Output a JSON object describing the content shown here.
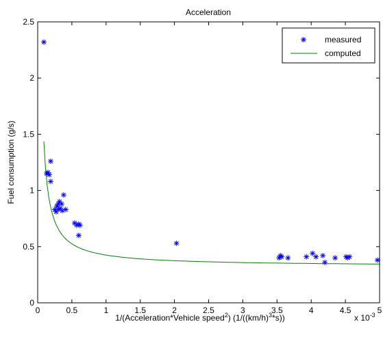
{
  "chart_data": {
    "type": "scatter",
    "title": "Acceleration",
    "xlabel": {
      "prefix": "1/(Acceleration*Vehicle speed",
      "sup1": "2",
      "middle": ") (1/((km/h)",
      "sup2": "3",
      "suffix": "*s))"
    },
    "ylabel": "Fuel consumption (g/s)",
    "x_multiplier": {
      "base": "x 10",
      "exponent": "-3"
    },
    "xlim": [
      0,
      5
    ],
    "ylim": [
      0,
      2.5
    ],
    "x_ticks": [
      0,
      0.5,
      1,
      1.5,
      2,
      2.5,
      3,
      3.5,
      4,
      4.5,
      5
    ],
    "x_tick_labels": [
      "0",
      "0.5",
      "1",
      "1.5",
      "2",
      "2.5",
      "3",
      "3.5",
      "4",
      "4.5",
      "5"
    ],
    "y_ticks": [
      0,
      0.5,
      1,
      1.5,
      2,
      2.5
    ],
    "y_tick_labels": [
      "0",
      "0.5",
      "1",
      "1.5",
      "2",
      "2.5"
    ],
    "grid": false,
    "legend_position": "top-right",
    "series": [
      {
        "name": "measured",
        "kind": "markers",
        "marker": "asterisk",
        "color": "#0000ff",
        "points": [
          [
            0.09,
            2.32
          ],
          [
            0.13,
            1.15
          ],
          [
            0.15,
            1.16
          ],
          [
            0.17,
            1.14
          ],
          [
            0.19,
            1.26
          ],
          [
            0.19,
            1.08
          ],
          [
            0.25,
            0.83
          ],
          [
            0.27,
            0.81
          ],
          [
            0.28,
            0.86
          ],
          [
            0.3,
            0.83
          ],
          [
            0.3,
            0.88
          ],
          [
            0.32,
            0.9
          ],
          [
            0.33,
            0.84
          ],
          [
            0.35,
            0.88
          ],
          [
            0.36,
            0.82
          ],
          [
            0.38,
            0.96
          ],
          [
            0.41,
            0.83
          ],
          [
            0.54,
            0.71
          ],
          [
            0.57,
            0.69
          ],
          [
            0.6,
            0.6
          ],
          [
            0.6,
            0.7
          ],
          [
            0.62,
            0.69
          ],
          [
            2.03,
            0.53
          ],
          [
            3.53,
            0.4
          ],
          [
            3.55,
            0.42
          ],
          [
            3.57,
            0.41
          ],
          [
            3.66,
            0.4
          ],
          [
            3.93,
            0.41
          ],
          [
            4.02,
            0.44
          ],
          [
            4.07,
            0.41
          ],
          [
            4.17,
            0.42
          ],
          [
            4.2,
            0.36
          ],
          [
            4.35,
            0.4
          ],
          [
            4.51,
            0.41
          ],
          [
            4.53,
            0.4
          ],
          [
            4.56,
            0.41
          ],
          [
            4.97,
            0.38
          ]
        ]
      },
      {
        "name": "computed",
        "kind": "line",
        "color": "#008000",
        "curve": {
          "x_start": 0.09,
          "x_end": 5,
          "a": 0.325,
          "b": 0.1
        }
      }
    ]
  }
}
